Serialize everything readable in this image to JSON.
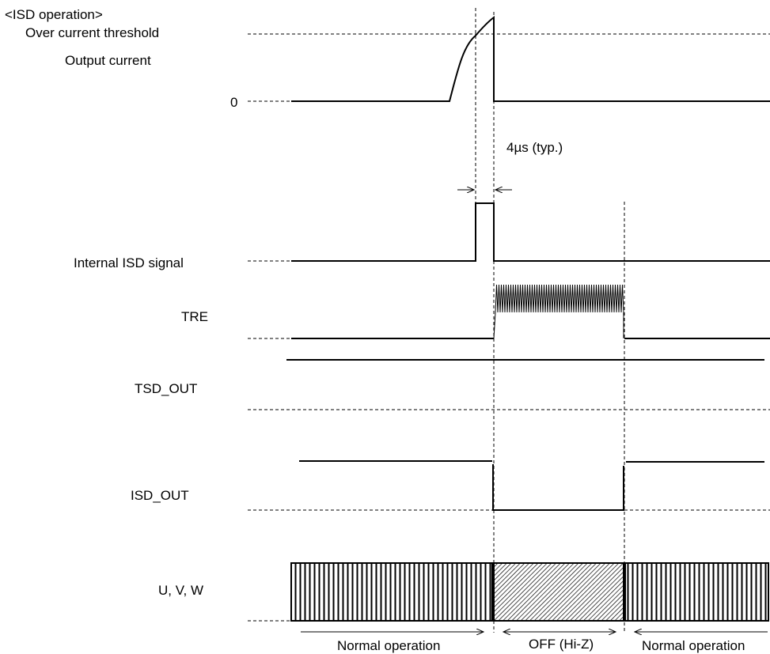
{
  "title": "<ISD operation>",
  "signals": {
    "over_current_threshold": "Over current threshold",
    "output_current": "Output current",
    "zero": "0",
    "internal_isd": "Internal ISD signal",
    "tre": "TRE",
    "tsd_out": "TSD_OUT",
    "isd_out": "ISD_OUT",
    "uvw": "U, V, W"
  },
  "annotations": {
    "pulse_width": "4µs (typ.)"
  },
  "phases": {
    "normal_1": "Normal operation",
    "off": "OFF (Hi-Z)",
    "normal_2": "Normal operation"
  }
}
